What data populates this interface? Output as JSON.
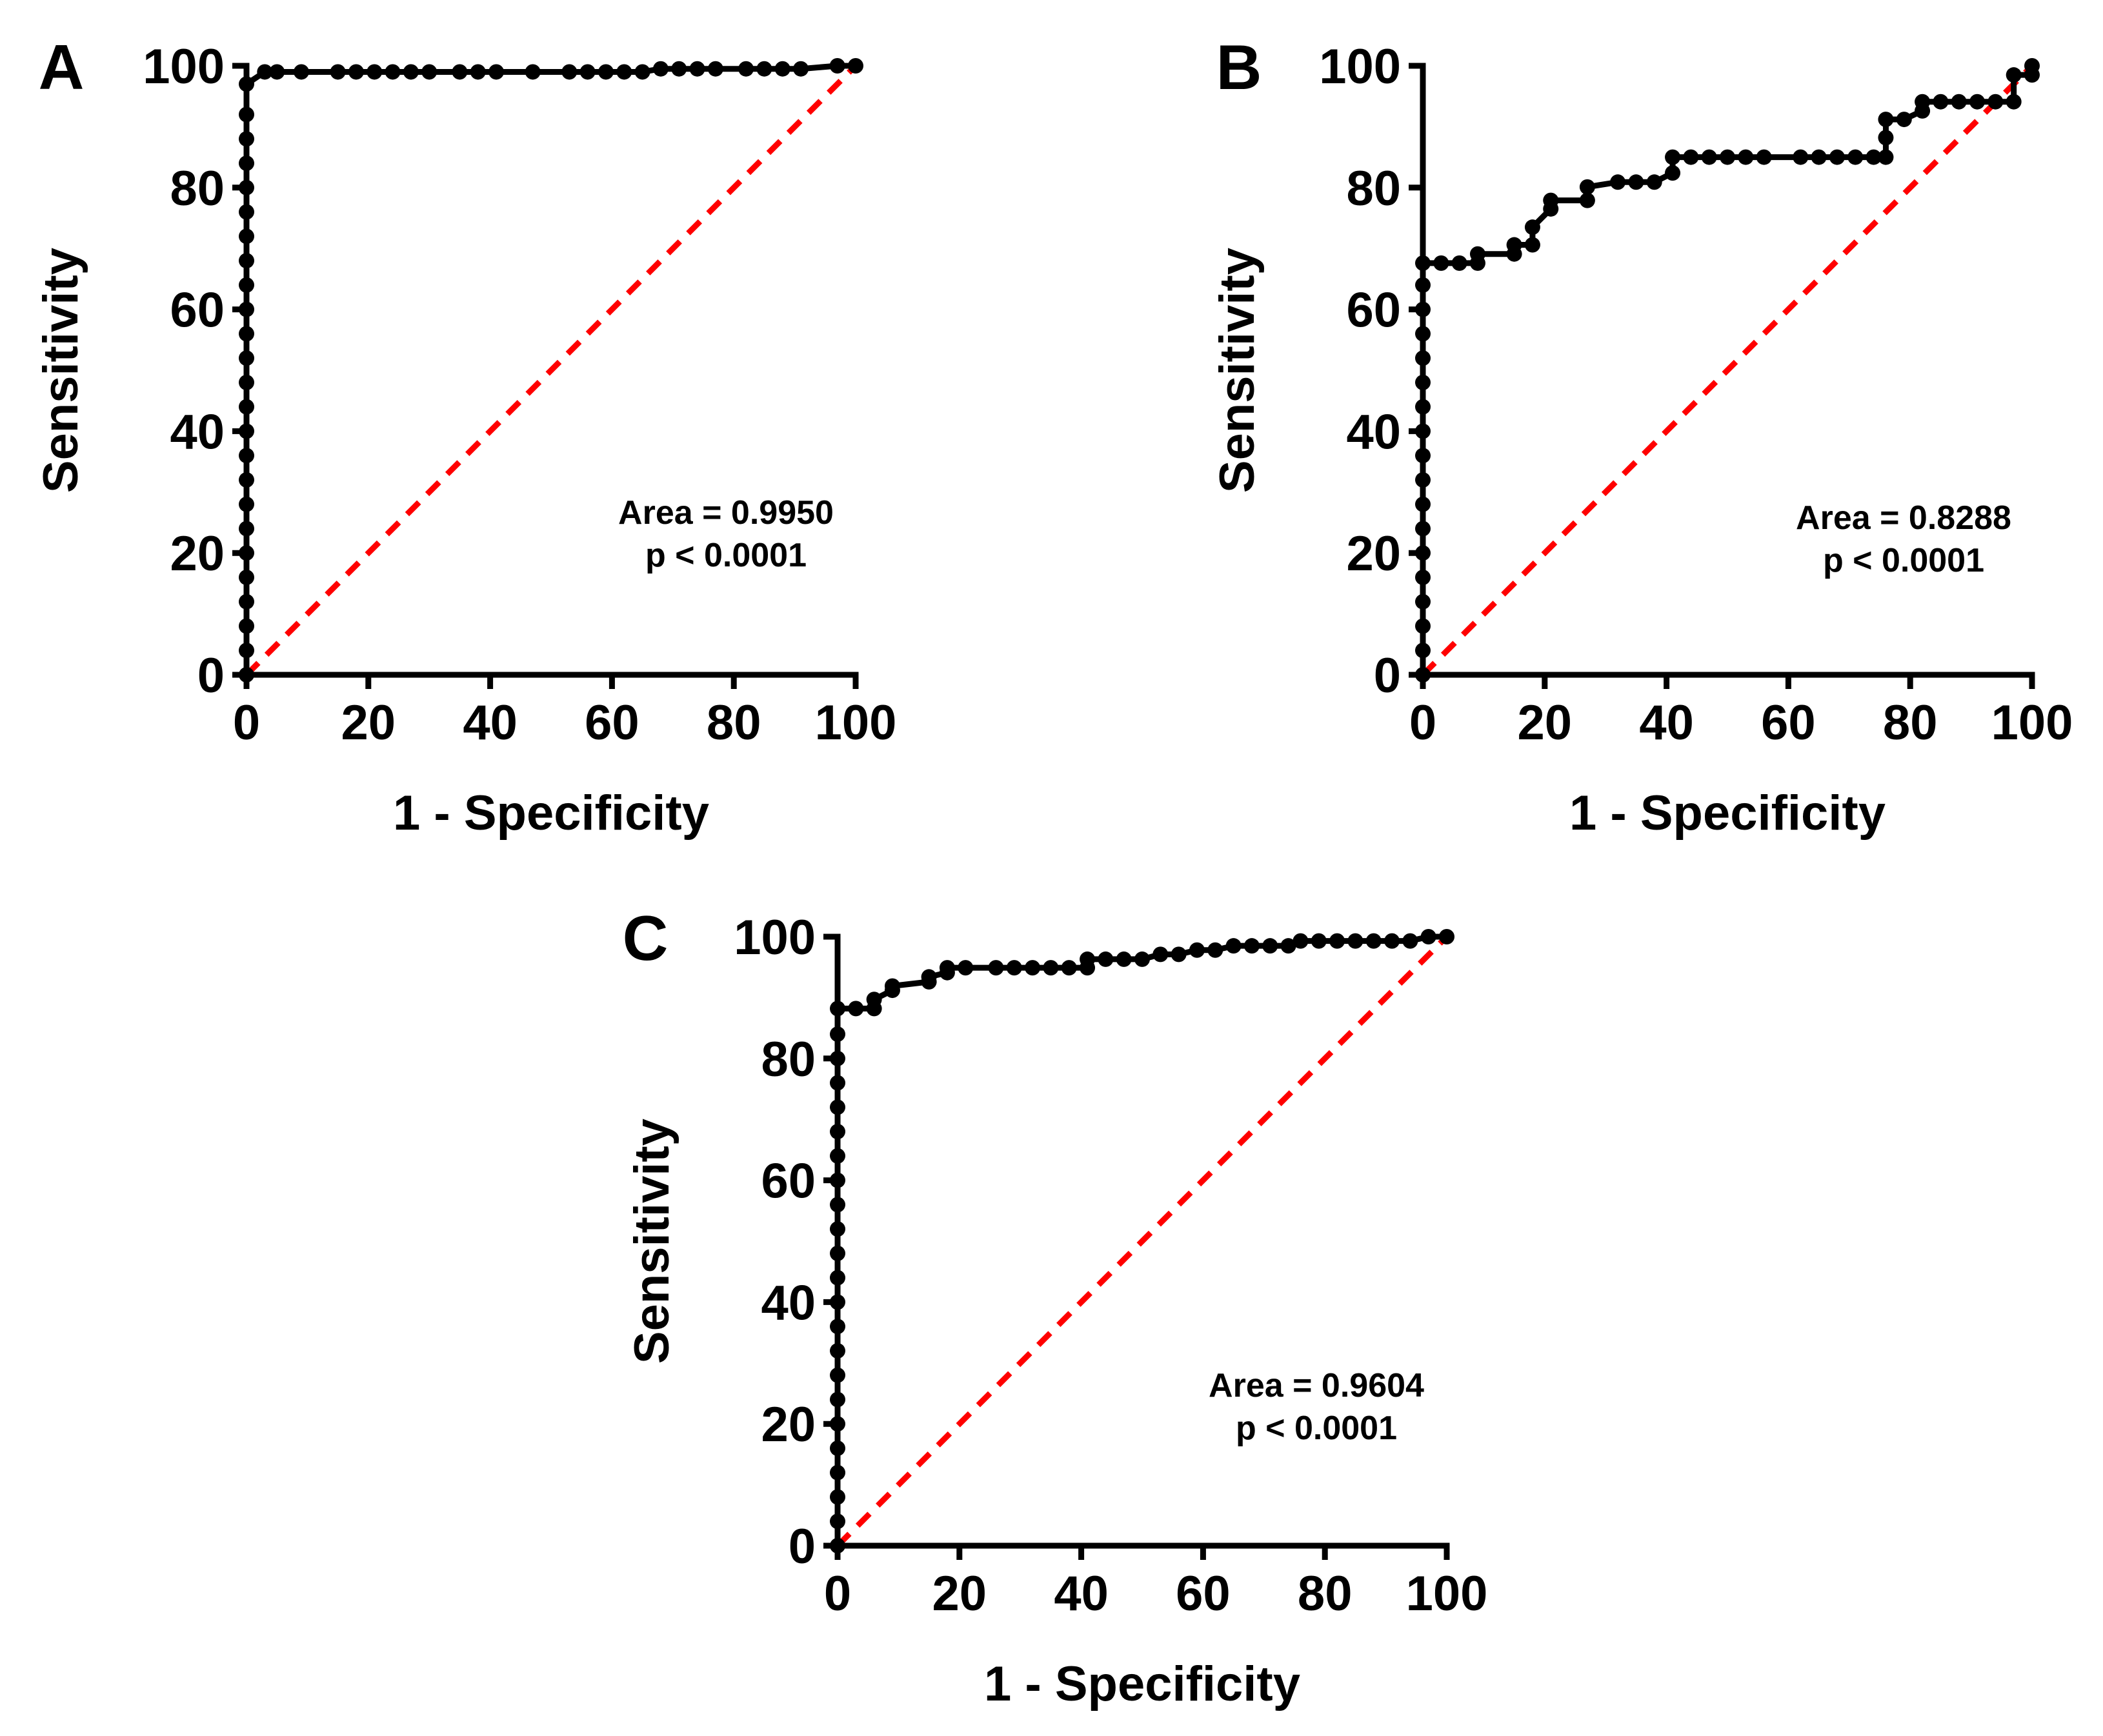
{
  "chart_data": [
    {
      "panel": "A",
      "type": "line",
      "curve": "ROC",
      "xlabel": "1 - Specificity",
      "ylabel": "Sensitivity",
      "xlim": [
        0,
        100
      ],
      "ylim": [
        0,
        100
      ],
      "xticks": [
        "0",
        "20",
        "40",
        "60",
        "80",
        "100"
      ],
      "yticks": [
        "0",
        "20",
        "40",
        "60",
        "80",
        "100"
      ],
      "annotation": [
        "Area = 0.9950",
        "p < 0.0001"
      ],
      "reference_line_color": "#ff0000",
      "curve_color": "#000000",
      "series": [
        {
          "name": "ROC curve",
          "x": [
            0,
            0,
            0,
            0,
            0,
            0,
            0,
            0,
            0,
            0,
            0,
            0,
            0,
            0,
            0,
            0,
            0,
            0,
            0,
            0,
            0,
            0,
            0,
            0,
            0,
            3,
            5,
            9,
            15,
            18,
            21,
            24,
            27,
            30,
            35,
            38,
            41,
            47,
            53,
            56,
            59,
            62,
            65,
            68,
            71,
            74,
            77,
            82,
            85,
            88,
            91,
            97,
            100
          ],
          "y": [
            0,
            4,
            8,
            12,
            16,
            20,
            24,
            28,
            32,
            36,
            40,
            44,
            48,
            52,
            56,
            60,
            64,
            68,
            72,
            76,
            80,
            84,
            88,
            92,
            97,
            99,
            99,
            99,
            99,
            99,
            99,
            99,
            99,
            99,
            99,
            99,
            99,
            99,
            99,
            99,
            99,
            99,
            99,
            99.5,
            99.5,
            99.5,
            99.5,
            99.5,
            99.5,
            99.5,
            99.5,
            100,
            100
          ]
        },
        {
          "name": "Reference line",
          "x": [
            0,
            100
          ],
          "y": [
            0,
            100
          ]
        }
      ]
    },
    {
      "panel": "B",
      "type": "line",
      "curve": "ROC",
      "xlabel": "1 - Specificity",
      "ylabel": "Sensitivity",
      "xlim": [
        0,
        100
      ],
      "ylim": [
        0,
        100
      ],
      "xticks": [
        "0",
        "20",
        "40",
        "60",
        "80",
        "100"
      ],
      "yticks": [
        "0",
        "20",
        "40",
        "60",
        "80",
        "100"
      ],
      "annotation": [
        "Area = 0.8288",
        "p < 0.0001"
      ],
      "reference_line_color": "#ff0000",
      "curve_color": "#000000",
      "series": [
        {
          "name": "ROC curve",
          "x": [
            0,
            0,
            0,
            0,
            0,
            0,
            0,
            0,
            0,
            0,
            0,
            0,
            0,
            0,
            0,
            0,
            0,
            0,
            3,
            6,
            9,
            9,
            15,
            15,
            18,
            18,
            21,
            21,
            27,
            27,
            32,
            35,
            38,
            41,
            41,
            44,
            47,
            50,
            53,
            56,
            62,
            65,
            68,
            71,
            74,
            76,
            76,
            76,
            79,
            82,
            82,
            85,
            88,
            91,
            94,
            97,
            97,
            100,
            100
          ],
          "y": [
            0,
            4,
            8,
            12,
            16,
            20,
            24,
            28,
            32,
            36,
            40,
            44,
            48,
            52,
            56,
            60,
            64,
            67.6,
            67.6,
            67.6,
            67.6,
            69.1,
            69.1,
            70.6,
            70.6,
            73.5,
            76.5,
            77.9,
            77.9,
            80.1,
            80.9,
            80.9,
            80.9,
            82.4,
            85,
            85,
            85,
            85,
            85,
            85,
            85,
            85,
            85,
            85,
            85,
            85,
            88.2,
            91.2,
            91.2,
            92.6,
            94.1,
            94.1,
            94.1,
            94.1,
            94.1,
            94.1,
            98.5,
            98.5,
            100
          ]
        },
        {
          "name": "Reference line",
          "x": [
            0,
            100
          ],
          "y": [
            0,
            100
          ]
        }
      ]
    },
    {
      "panel": "C",
      "type": "line",
      "curve": "ROC",
      "xlabel": "1 - Specificity",
      "ylabel": "Sensitivity",
      "xlim": [
        0,
        100
      ],
      "ylim": [
        0,
        100
      ],
      "xticks": [
        "0",
        "20",
        "40",
        "60",
        "80",
        "100"
      ],
      "yticks": [
        "0",
        "20",
        "40",
        "60",
        "80",
        "100"
      ],
      "annotation": [
        "Area = 0.9604",
        "p < 0.0001"
      ],
      "reference_line_color": "#ff0000",
      "curve_color": "#000000",
      "series": [
        {
          "name": "ROC curve",
          "x": [
            0,
            0,
            0,
            0,
            0,
            0,
            0,
            0,
            0,
            0,
            0,
            0,
            0,
            0,
            0,
            0,
            0,
            0,
            0,
            0,
            0,
            0,
            0,
            3,
            6,
            6,
            9,
            9,
            15,
            15,
            18,
            18,
            21,
            26,
            29,
            32,
            35,
            38,
            41,
            41,
            44,
            47,
            50,
            53,
            56,
            59,
            62,
            65,
            68,
            71,
            74,
            76,
            79,
            82,
            85,
            88,
            91,
            94,
            97,
            100
          ],
          "y": [
            0,
            4,
            8,
            12,
            16,
            20,
            24,
            28,
            32,
            36,
            40,
            44,
            48,
            52,
            56,
            60,
            64,
            68,
            72,
            76,
            80,
            84,
            88.2,
            88.2,
            88.2,
            89.7,
            91.2,
            91.9,
            92.6,
            93.4,
            94.1,
            94.9,
            94.9,
            94.9,
            94.9,
            94.9,
            94.9,
            94.9,
            94.9,
            96.3,
            96.3,
            96.3,
            96.3,
            97.1,
            97.1,
            97.8,
            97.8,
            98.5,
            98.5,
            98.5,
            98.5,
            99.3,
            99.3,
            99.3,
            99.3,
            99.3,
            99.3,
            99.3,
            100,
            100
          ]
        },
        {
          "name": "Reference line",
          "x": [
            0,
            100
          ],
          "y": [
            0,
            100
          ]
        }
      ]
    }
  ]
}
